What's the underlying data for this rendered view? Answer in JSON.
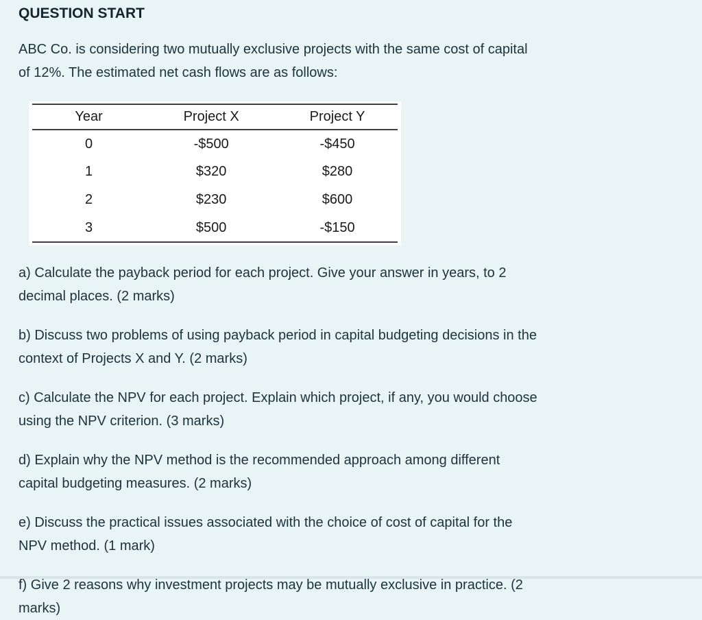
{
  "page": {
    "background_color": "#e9f4f6",
    "text_color": "#1c323c"
  },
  "title": "QUESTION START",
  "intro": "ABC Co. is considering two mutually exclusive projects with the same cost of capital\nof 12%. The estimated net cash flows are as follows:",
  "table": {
    "headers": [
      "Year",
      "Project X",
      "Project Y"
    ],
    "rows": [
      [
        "0",
        "-$500",
        "-$450"
      ],
      [
        "1",
        "$320",
        "$280"
      ],
      [
        "2",
        "$230",
        "$600"
      ],
      [
        "3",
        "$500",
        "-$150"
      ]
    ]
  },
  "questions": [
    "a) Calculate the payback period for each project. Give your answer in years, to 2\ndecimal places. (2 marks)",
    "b) Discuss two problems of using payback period in capital budgeting decisions in the\ncontext of Projects X and Y. (2 marks)",
    "c) Calculate the NPV for each project. Explain which project, if any, you would choose\nusing the NPV criterion. (3 marks)",
    "d) Explain why the NPV method is the recommended approach among different\ncapital budgeting measures. (2 marks)",
    "e) Discuss the practical issues associated with the choice of cost of capital for the\nNPV method. (1 mark)",
    "f) Give 2 reasons why investment projects may be mutually exclusive in practice. (2\nmarks)"
  ]
}
